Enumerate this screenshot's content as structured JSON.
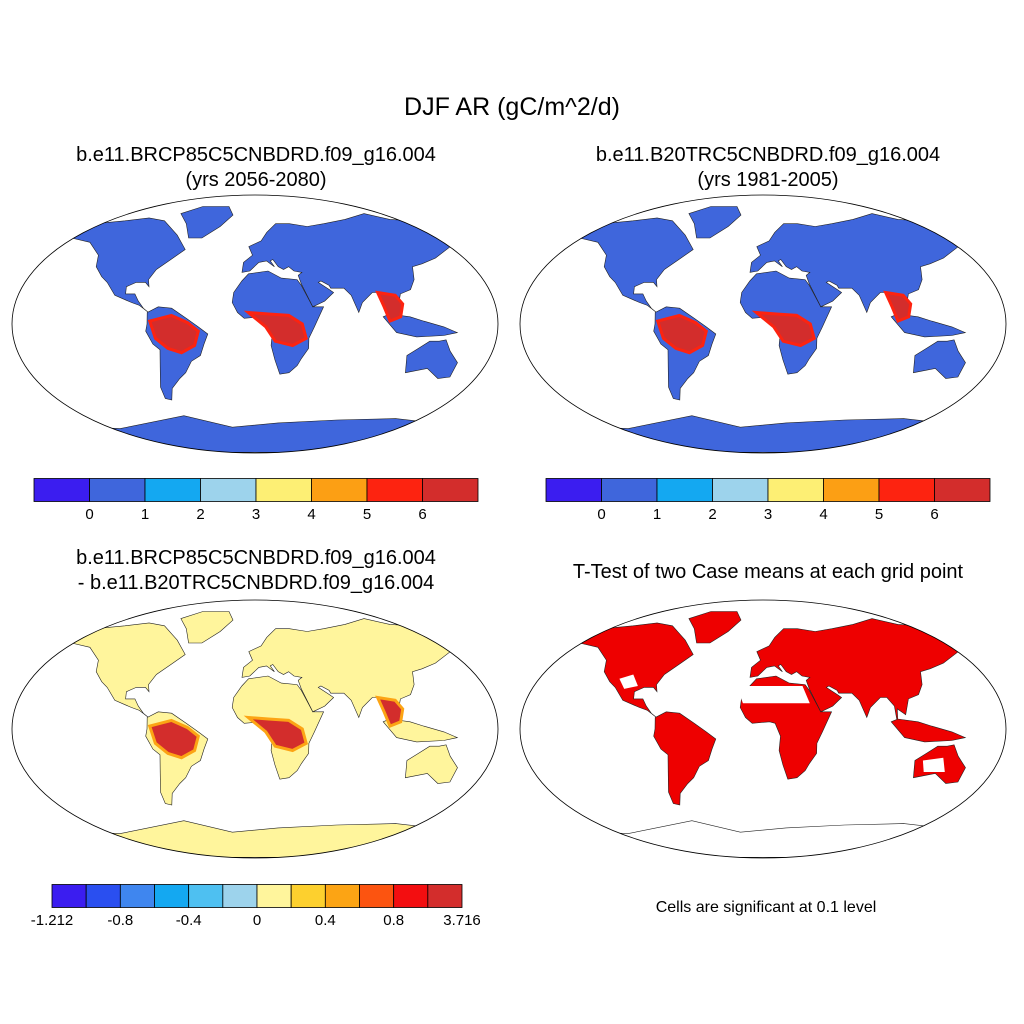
{
  "main_title": "DJF AR (gC/m^2/d)",
  "panels": [
    {
      "id": "top-left",
      "title_line1": "b.e11.BRCP85C5CNBDRD.f09_g16.004",
      "title_line2": "(yrs 2056-2080)",
      "colorbar": {
        "colors": [
          "#3b1df0",
          "#3f66dc",
          "#14a8f1",
          "#9dd3ec",
          "#fdef74",
          "#fc9f14",
          "#fd2310",
          "#d32d2c"
        ],
        "ticks": [
          "0",
          "1",
          "2",
          "3",
          "4",
          "5",
          "6"
        ]
      }
    },
    {
      "id": "top-right",
      "title_line1": "b.e11.B20TRC5CNBDRD.f09_g16.004",
      "title_line2": "(yrs 1981-2005)",
      "colorbar": {
        "colors": [
          "#3b1df0",
          "#3f66dc",
          "#14a8f1",
          "#9dd3ec",
          "#fdef74",
          "#fc9f14",
          "#fd2310",
          "#d32d2c"
        ],
        "ticks": [
          "0",
          "1",
          "2",
          "3",
          "4",
          "5",
          "6"
        ]
      }
    },
    {
      "id": "bottom-left",
      "title_line1": "b.e11.BRCP85C5CNBDRD.f09_g16.004",
      "title_line2": "- b.e11.B20TRC5CNBDRD.f09_g16.004",
      "colorbar": {
        "colors": [
          "#3b1df0",
          "#2a4ff0",
          "#3f86ef",
          "#14a8f1",
          "#4ec0f1",
          "#9dd3ec",
          "#fff59c",
          "#fdd02e",
          "#fca414",
          "#fc5410",
          "#f30e10",
          "#d32d2c"
        ],
        "ticks": [
          "-1.212",
          "-0.8",
          "-0.4",
          "0",
          "0.4",
          "0.8",
          "3.716"
        ]
      }
    },
    {
      "id": "bottom-right",
      "title_line1": "T-Test of two Case means at each grid point",
      "note": "Cells are significant at 0.1 level",
      "fill_color": "#ee0000"
    }
  ]
}
